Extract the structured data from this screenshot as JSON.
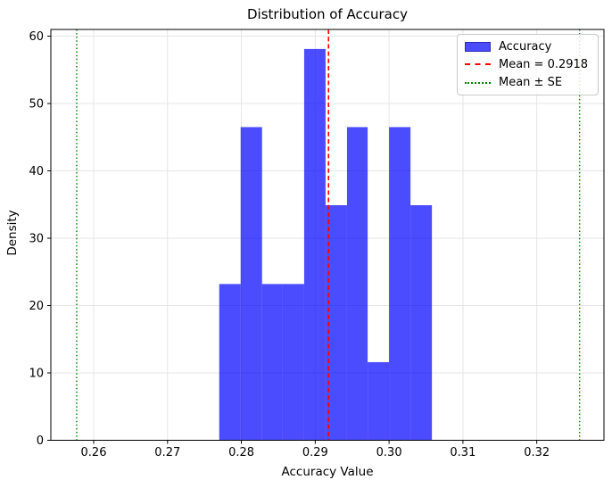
{
  "chart_data": {
    "type": "bar",
    "subtype": "histogram-density",
    "title": "Distribution of Accuracy",
    "xlabel": "Accuracy Value",
    "ylabel": "Density",
    "xlim": [
      0.2542,
      0.3291
    ],
    "ylim": [
      0,
      61
    ],
    "x_tick_labels": [
      "0.26",
      "0.27",
      "0.28",
      "0.29",
      "0.30",
      "0.31",
      "0.32"
    ],
    "x_tick_values": [
      0.26,
      0.27,
      0.28,
      0.29,
      0.3,
      0.31,
      0.32
    ],
    "y_tick_values": [
      0,
      10,
      20,
      30,
      40,
      50,
      60
    ],
    "grid": true,
    "bin_edges": [
      0.277,
      0.2799,
      0.2828,
      0.2856,
      0.2885,
      0.2914,
      0.2943,
      0.2971,
      0.3,
      0.3029,
      0.3058
    ],
    "densities": [
      23.2,
      46.5,
      23.2,
      23.2,
      58.1,
      34.9,
      46.5,
      11.6,
      46.5,
      34.9
    ],
    "series_name": "Accuracy",
    "bar_color": "#0000ff",
    "bar_opacity": 0.7,
    "mean_line": {
      "value": 0.2918,
      "label": "Mean = 0.2918",
      "color": "#ff0000",
      "style": "dashed"
    },
    "se_lines": {
      "values": [
        0.2577,
        0.3258
      ],
      "label": "Mean ± SE",
      "color": "#008000",
      "style": "dotted"
    },
    "legend_position": "upper right",
    "legend": {
      "items": [
        {
          "label": "Accuracy",
          "swatch": "patch",
          "color": "#0000ff"
        },
        {
          "label": "Mean = 0.2918",
          "swatch": "dashed-line",
          "color": "#ff0000"
        },
        {
          "label": "Mean ± SE",
          "swatch": "dotted-line",
          "color": "#008000"
        }
      ]
    },
    "grid_color": "#e5e5e5",
    "spine_color": "#000000"
  }
}
